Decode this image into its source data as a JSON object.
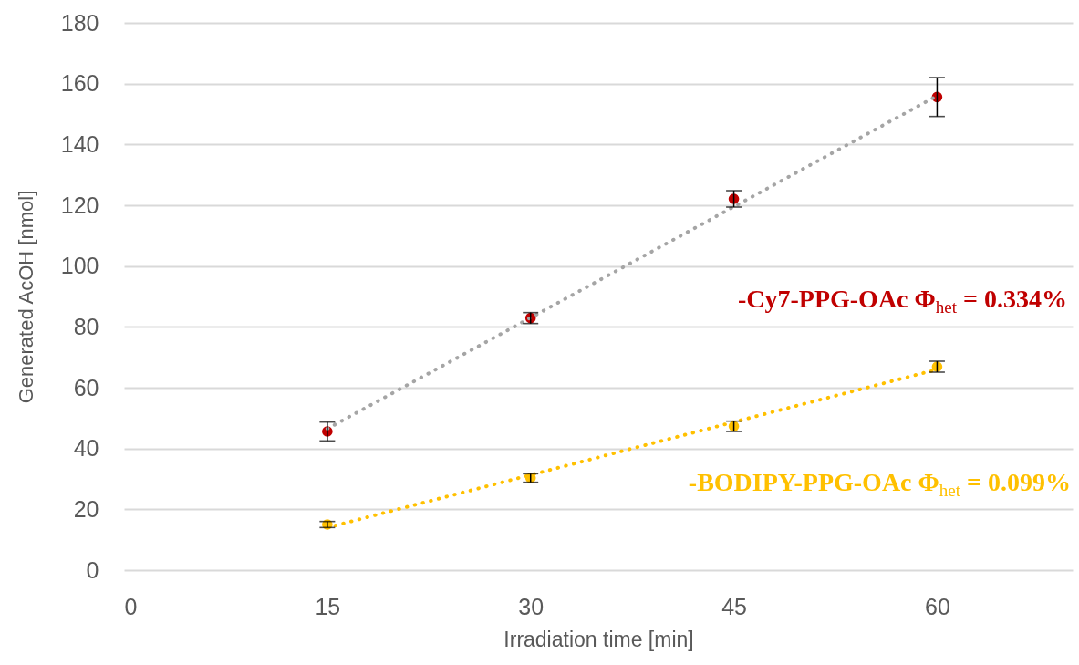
{
  "chart_data": {
    "type": "scatter",
    "xlabel": "Irradiation time [min]",
    "ylabel": "Generated AcOH [nmol]",
    "x": [
      15,
      30,
      45,
      60
    ],
    "xlim": [
      0,
      70
    ],
    "xticks": [
      0,
      15,
      30,
      45,
      60
    ],
    "ylim": [
      0,
      180
    ],
    "yticks": [
      0,
      20,
      40,
      60,
      80,
      100,
      120,
      140,
      160,
      180
    ],
    "grid": "y",
    "marker": "circle",
    "line_style": "dotted",
    "series": [
      {
        "name": "-Cy7-PPG-OAc Φ$_{het}$ = 0.334%",
        "color": "#c00000",
        "values": [
          45.6,
          82.9,
          122.1,
          155.6
        ],
        "errors": [
          3.1,
          1.8,
          2.7,
          6.4
        ]
      },
      {
        "type": "line",
        "marker": "none",
        "color": "#a5a5a5",
        "values": [
          46.5,
          83.0,
          119.5,
          156
        ]
      },
      {
        "name": "-BODIPY-PPG-OAc Φ$_{het}$ = 0.099%",
        "color": "#ffc000",
        "values": [
          15.0,
          30.3,
          47.3,
          66.9
        ],
        "errors": [
          1.0,
          1.4,
          1.7,
          1.8
        ]
      },
      {
        "type": "line",
        "marker": "none",
        "color": "#ffc000",
        "values": [
          14,
          31.3,
          48.7,
          66
        ]
      }
    ]
  }
}
